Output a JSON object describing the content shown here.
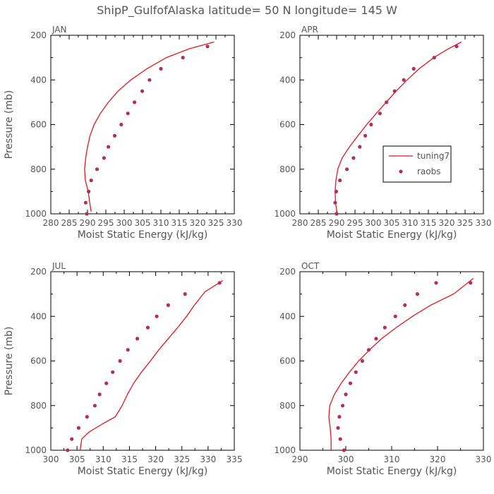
{
  "figure_title": "ShipP_GulfofAlaska   latitude= 50 N longitude= 145 W",
  "colors": {
    "model_line": "#e8141e",
    "obs_marker": "#b03058",
    "text": "#555555"
  },
  "legend": {
    "line_label": "tuning7",
    "marker_label": "raobs"
  },
  "chart_data": [
    {
      "type": "line",
      "panel_label": "JAN",
      "xlabel": "Moist Static Energy (kJ/kg)",
      "ylabel": "Pressure (mb)",
      "xlim": [
        280,
        330
      ],
      "xticks": [
        280,
        285,
        290,
        295,
        300,
        305,
        310,
        315,
        320,
        325,
        330
      ],
      "ylim": [
        1000,
        200
      ],
      "yticks": [
        200,
        400,
        600,
        800,
        1000
      ],
      "series": [
        {
          "name": "tuning7",
          "style": "line",
          "x": [
            291.0,
            290.6,
            290.2,
            289.4,
            289.2,
            289.5,
            290.0,
            290.7,
            291.8,
            293.5,
            295.7,
            298.3,
            301.8,
            306.2,
            311.5,
            317.8,
            324.5
          ],
          "y": [
            990,
            950,
            900,
            850,
            800,
            750,
            700,
            650,
            600,
            550,
            500,
            450,
            400,
            350,
            300,
            260,
            230
          ]
        },
        {
          "name": "raobs",
          "style": "marker",
          "x": [
            289.8,
            289.5,
            290.3,
            291.0,
            292.6,
            294.5,
            295.7,
            297.4,
            299.2,
            301.0,
            302.8,
            304.9,
            306.9,
            310.0,
            316.0,
            322.7
          ],
          "y": [
            1000,
            950,
            900,
            850,
            800,
            750,
            700,
            650,
            600,
            550,
            500,
            450,
            400,
            350,
            300,
            250
          ]
        }
      ]
    },
    {
      "type": "line",
      "panel_label": "APR",
      "xlabel": "Moist Static Energy (kJ/kg)",
      "ylabel": "",
      "xlim": [
        280,
        330
      ],
      "xticks": [
        280,
        285,
        290,
        295,
        300,
        305,
        310,
        315,
        320,
        325,
        330
      ],
      "ylim": [
        1000,
        200
      ],
      "yticks": [
        200,
        400,
        600,
        800,
        1000
      ],
      "series": [
        {
          "name": "tuning7",
          "style": "line",
          "x": [
            290.2,
            289.7,
            289.6,
            289.8,
            290.3,
            291.5,
            293.5,
            295.8,
            298.2,
            300.8,
            303.5,
            306.2,
            309.2,
            312.5,
            316.5,
            320.5,
            324.0
          ],
          "y": [
            1000,
            950,
            900,
            850,
            800,
            750,
            700,
            650,
            600,
            550,
            500,
            450,
            400,
            350,
            300,
            260,
            230
          ]
        },
        {
          "name": "raobs",
          "style": "marker",
          "x": [
            290.0,
            289.6,
            289.9,
            290.9,
            292.8,
            294.6,
            296.3,
            297.8,
            299.4,
            301.8,
            303.6,
            305.8,
            308.3,
            311.0,
            316.6,
            322.7
          ],
          "y": [
            1000,
            950,
            900,
            850,
            800,
            750,
            700,
            650,
            600,
            550,
            500,
            450,
            400,
            350,
            300,
            250
          ]
        }
      ]
    },
    {
      "type": "line",
      "panel_label": "JUL",
      "xlabel": "Moist Static Energy (kJ/kg)",
      "ylabel": "Pressure (mb)",
      "xlim": [
        300,
        335
      ],
      "xticks": [
        300,
        305,
        310,
        315,
        320,
        325,
        330,
        335
      ],
      "ylim": [
        1000,
        200
      ],
      "yticks": [
        200,
        400,
        600,
        800,
        1000
      ],
      "series": [
        {
          "name": "tuning7",
          "style": "line",
          "x": [
            305.6,
            305.9,
            307.2,
            310.0,
            312.3,
            313.6,
            314.6,
            315.8,
            317.3,
            319.0,
            320.6,
            322.4,
            324.2,
            325.9,
            327.4,
            329.4,
            332.8
          ],
          "y": [
            1000,
            950,
            920,
            880,
            850,
            800,
            750,
            700,
            650,
            600,
            550,
            500,
            450,
            400,
            350,
            290,
            240
          ]
        },
        {
          "name": "raobs",
          "style": "marker",
          "x": [
            303.2,
            304.0,
            305.3,
            306.9,
            308.4,
            309.3,
            310.6,
            311.8,
            313.2,
            314.7,
            316.5,
            318.5,
            320.2,
            322.4,
            325.6,
            332.2
          ],
          "y": [
            1000,
            950,
            900,
            850,
            800,
            750,
            700,
            650,
            600,
            550,
            500,
            450,
            400,
            350,
            300,
            250
          ]
        }
      ]
    },
    {
      "type": "line",
      "panel_label": "OCT",
      "xlabel": "Moist Static Energy (kJ/kg)",
      "ylabel": "",
      "xlim": [
        290,
        330
      ],
      "xticks": [
        290,
        300,
        310,
        320,
        330
      ],
      "ylim": [
        1000,
        200
      ],
      "yticks": [
        200,
        400,
        600,
        800,
        1000
      ],
      "series": [
        {
          "name": "tuning7",
          "style": "line",
          "x": [
            296.8,
            296.8,
            296.6,
            296.3,
            296.5,
            297.5,
            299.0,
            300.8,
            302.8,
            305.2,
            307.8,
            311.0,
            314.5,
            318.5,
            323.5,
            327.8
          ],
          "y": [
            1000,
            950,
            900,
            850,
            800,
            750,
            700,
            650,
            600,
            550,
            500,
            450,
            400,
            350,
            300,
            230
          ]
        },
        {
          "name": "raobs",
          "style": "marker",
          "x": [
            299.6,
            298.8,
            298.3,
            298.6,
            299.3,
            300.0,
            301.0,
            302.2,
            303.6,
            305.0,
            306.6,
            308.5,
            310.8,
            312.9,
            315.6,
            319.7,
            327.2
          ],
          "y": [
            1000,
            950,
            900,
            850,
            800,
            750,
            700,
            650,
            600,
            550,
            500,
            450,
            400,
            350,
            300,
            250,
            250
          ]
        }
      ]
    }
  ]
}
